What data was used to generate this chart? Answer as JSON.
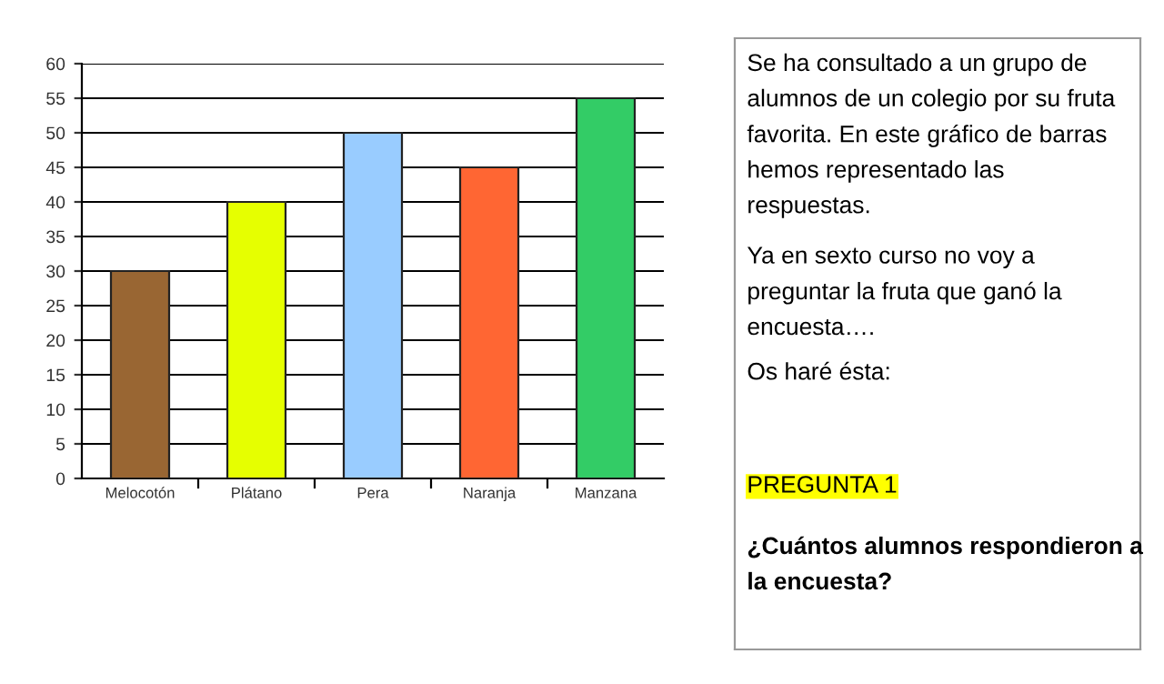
{
  "chart_data": [
    {
      "type": "bar",
      "categories": [
        "Melocotón",
        "Plátano",
        "Pera",
        "Naranja",
        "Manzana"
      ],
      "values": [
        30,
        40,
        50,
        45,
        55
      ],
      "colors": [
        "#996633",
        "#e6ff00",
        "#99ccff",
        "#ff6633",
        "#33cc66"
      ],
      "ylim": [
        0,
        60
      ],
      "yticks": [
        0,
        5,
        10,
        15,
        20,
        25,
        30,
        35,
        40,
        45,
        50,
        55,
        60
      ],
      "grid": "y"
    },
    {
      "type": "other",
      "annotations": [
        "Se ha consultado a un grupo de\nalumnos de un colegio por su fruta\nfavorita. En este gráfico de barras\nhemos representado las\nrespuestas.",
        "Ya en sexto curso no voy a\npreguntar la fruta que ganó la\nencuesta….",
        "Os haré ésta:",
        "PREGUNTA 1",
        "¿Cuántos alumnos respondieron a\nla encuesta?"
      ]
    }
  ]
}
